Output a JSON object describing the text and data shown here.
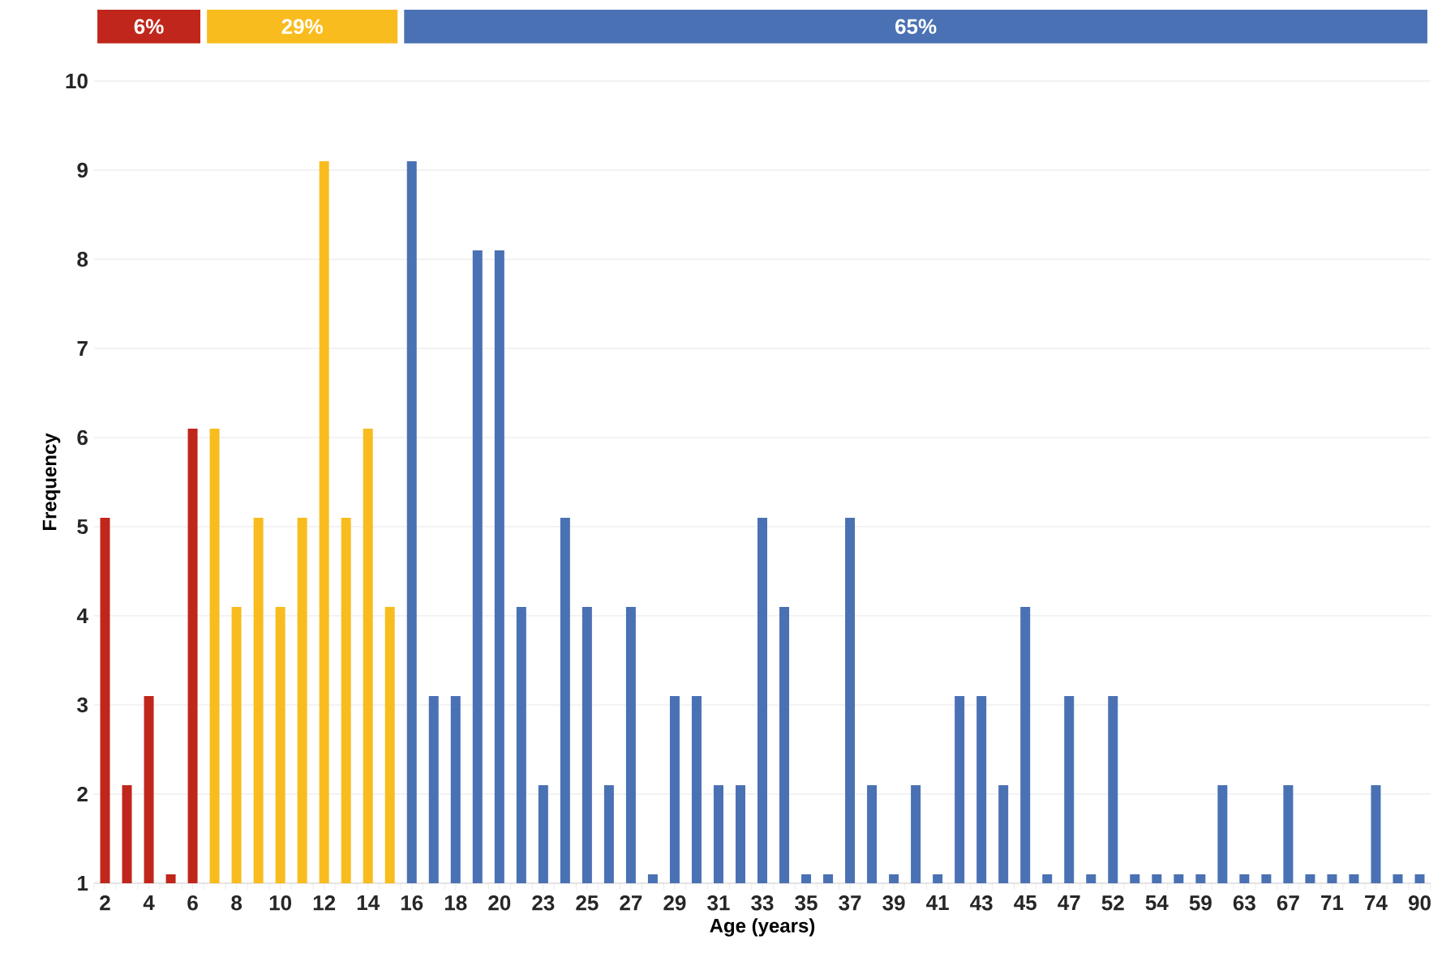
{
  "chart_data": {
    "type": "bar",
    "xlabel": "Age (years)",
    "ylabel": "Frequency",
    "categories": [
      "2",
      null,
      "4",
      null,
      "6",
      null,
      "8",
      null,
      "10",
      null,
      "12",
      null,
      "14",
      null,
      "16",
      null,
      "18",
      null,
      "20",
      null,
      "23",
      null,
      "25",
      null,
      "27",
      null,
      "29",
      null,
      "31",
      null,
      "33",
      null,
      "35",
      null,
      "37",
      null,
      "39",
      null,
      "41",
      null,
      "43",
      null,
      "45",
      null,
      "47",
      null,
      "52",
      null,
      "54",
      null,
      "59",
      null,
      "63",
      null,
      "67",
      null,
      "71",
      null,
      "74",
      null,
      "90"
    ],
    "series": [
      {
        "color": "#c0261b",
        "values": [
          5.1,
          2.1,
          3.1,
          1.1,
          6.1,
          null,
          null,
          null,
          null,
          null,
          null,
          null,
          null,
          null,
          null,
          null,
          null,
          null,
          null,
          null,
          null,
          null,
          null,
          null,
          null,
          null,
          null,
          null,
          null,
          null,
          null,
          null,
          null,
          null,
          null,
          null,
          null,
          null,
          null,
          null,
          null,
          null,
          null,
          null,
          null,
          null,
          null,
          null,
          null,
          null,
          null,
          null,
          null,
          null,
          null,
          null,
          null,
          null,
          null,
          null,
          null
        ]
      },
      {
        "color": "#f9bc1e",
        "values": [
          null,
          null,
          null,
          null,
          null,
          6.1,
          4.1,
          5.1,
          4.1,
          5.1,
          9.1,
          5.1,
          6.1,
          4.1,
          null,
          null,
          null,
          null,
          null,
          null,
          null,
          null,
          null,
          null,
          null,
          null,
          null,
          null,
          null,
          null,
          null,
          null,
          null,
          null,
          null,
          null,
          null,
          null,
          null,
          null,
          null,
          null,
          null,
          null,
          null,
          null,
          null,
          null,
          null,
          null,
          null,
          null,
          null,
          null,
          null,
          null,
          null,
          null,
          null,
          null,
          null
        ]
      },
      {
        "color": "#4a71b3",
        "values": [
          null,
          null,
          null,
          null,
          null,
          null,
          null,
          null,
          null,
          null,
          null,
          null,
          null,
          null,
          9.1,
          3.1,
          3.1,
          8.1,
          8.1,
          4.1,
          2.1,
          5.1,
          4.1,
          2.1,
          4.1,
          1.1,
          3.1,
          3.1,
          2.1,
          2.1,
          5.1,
          4.1,
          1.1,
          1.1,
          5.1,
          2.1,
          1.1,
          2.1,
          1.1,
          3.1,
          3.1,
          2.1,
          4.1,
          1.1,
          3.1,
          1.1,
          3.1,
          1.1,
          1.1,
          1.1,
          1.1,
          2.1,
          1.1,
          1.1,
          2.1,
          1.1,
          1.1,
          1.1,
          2.1,
          1.1,
          1.1
        ]
      }
    ],
    "annotations": [
      "6%",
      "29%",
      "65%"
    ],
    "ylim": [
      1,
      10
    ],
    "yticks": [
      1,
      2,
      3,
      4,
      5,
      6,
      7,
      8,
      9,
      10
    ],
    "grid": "y"
  }
}
